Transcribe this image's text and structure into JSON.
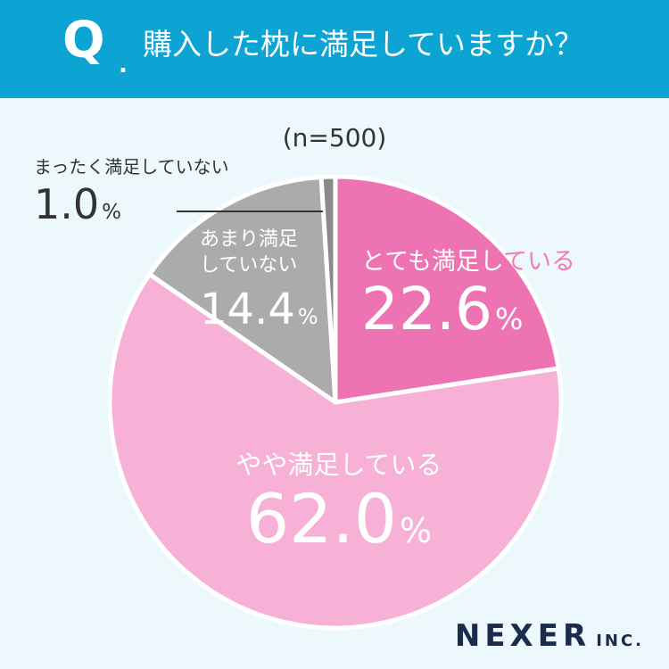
{
  "header": {
    "q_mark": "Q",
    "q_dot": ".",
    "question": "購入した枕に満足していますか？"
  },
  "sample_size": "(n=500)",
  "chart_data": {
    "type": "pie",
    "title": "購入した枕に満足していますか？",
    "unit": "%",
    "start_angle_deg": 0,
    "direction": "clockwise",
    "slices": [
      {
        "label": "とても満足している",
        "value": 22.6,
        "value_text": "22.6",
        "color": "#EE73B3"
      },
      {
        "label": "やや満足している",
        "value": 62.0,
        "value_text": "62.0",
        "color": "#F7B1D6"
      },
      {
        "label": "あまり満足していない",
        "value": 14.4,
        "value_text": "14.4",
        "color": "#ABABAB"
      },
      {
        "label": "まったく満足していない",
        "value": 1.0,
        "value_text": "1.0",
        "color": "#8A8A8A"
      }
    ],
    "label_texts": {
      "very_head": "とても満足し",
      "very_tail": "ている",
      "some": "やや満足している",
      "notvery_line1": "あまり満足",
      "notvery_line2": "していない",
      "not": "まったく満足していない"
    },
    "separator_color": "#FFFFFF"
  },
  "brand": {
    "name": "NEXER",
    "suffix": "INC.",
    "color": "#1A2B4C"
  }
}
